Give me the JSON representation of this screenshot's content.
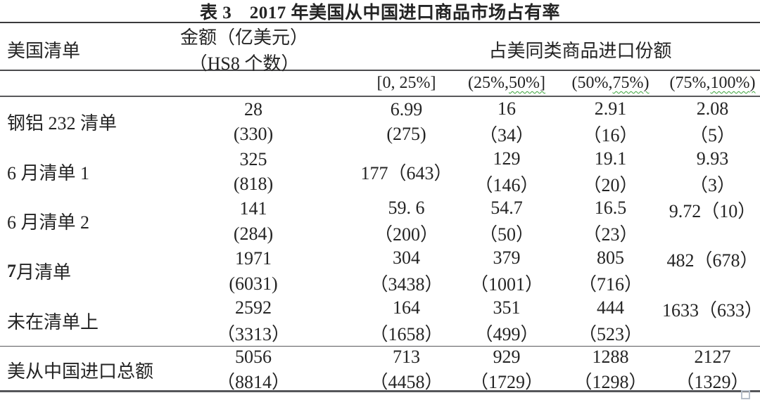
{
  "title": "表 3　2017 年美国从中国进口商品市场占有率",
  "header": {
    "us_list": "美国清单",
    "amount_line1": "金额（亿美元）",
    "amount_line2": "（HS8 个数）",
    "share_title": "占美同类商品进口份额",
    "bins": [
      {
        "pre": "[0, 25%]",
        "wavy": ""
      },
      {
        "pre": "(25%,",
        "wavy": " 50%]"
      },
      {
        "pre": "(50%,",
        "wavy": " 75%)"
      },
      {
        "pre": "(75%,",
        "wavy": " 100%)"
      }
    ]
  },
  "rows": [
    {
      "label_prefix": "",
      "label": "钢铝 232 清单",
      "cells": [
        {
          "l1": "28",
          "l2": "(330)"
        },
        {
          "l1": "6.99",
          "l2": "(275)"
        },
        {
          "l1": "16",
          "l2": "（34）"
        },
        {
          "l1": "2.91",
          "l2": "（16）"
        },
        {
          "l1": "2.08",
          "l2": "（5）"
        }
      ]
    },
    {
      "label_prefix": "",
      "label": "6 月清单 1",
      "cells": [
        {
          "l1": "325",
          "l2": "(818)"
        },
        {
          "l1": "177（643）",
          "l2": ""
        },
        {
          "l1": "129",
          "l2": "（146）"
        },
        {
          "l1": "19.1",
          "l2": "（20）"
        },
        {
          "l1": "9.93",
          "l2": "（3）"
        }
      ]
    },
    {
      "label_prefix": "",
      "label": "6 月清单 2",
      "cells": [
        {
          "l1": "141",
          "l2": "(284)"
        },
        {
          "l1": "59. 6",
          "l2": "（200）"
        },
        {
          "l1": "54.7",
          "l2": "（50）"
        },
        {
          "l1": "16.5",
          "l2": "（23）"
        },
        {
          "l1": "9.72（10）",
          "l2": ""
        }
      ]
    },
    {
      "label_prefix": "7",
      "label": " 月清单",
      "cells": [
        {
          "l1": "1971",
          "l2": "(6031)"
        },
        {
          "l1": "304",
          "l2": "（3438）"
        },
        {
          "l1": "379",
          "l2": "（1001）"
        },
        {
          "l1": "805",
          "l2": "（716）"
        },
        {
          "l1": "482（678）",
          "l2": ""
        }
      ]
    },
    {
      "label_prefix": "",
      "label": "未在清单上",
      "cells": [
        {
          "l1": "2592",
          "l2": "（3313）"
        },
        {
          "l1": "164",
          "l2": "（1658）"
        },
        {
          "l1": "351",
          "l2": "（499）"
        },
        {
          "l1": "444",
          "l2": "（523）"
        },
        {
          "l1": "1633（633）",
          "l2": ""
        }
      ]
    }
  ],
  "total": {
    "label": "美从中国进口总额",
    "cells": [
      {
        "l1": "5056",
        "l2": "（8814）"
      },
      {
        "l1": "713",
        "l2": "（4458）"
      },
      {
        "l1": "929",
        "l2": "（1729）"
      },
      {
        "l1": "1288",
        "l2": "（1298）"
      },
      {
        "l1": "2127",
        "l2": "（1329）"
      }
    ]
  },
  "colors": {
    "text": "#242424",
    "rule": "#4b4b4d",
    "wavy_underline": "#3aa33a"
  },
  "chart_data": {
    "type": "table",
    "title": "表 3　2017 年美国从中国进口商品市场占有率",
    "columns": [
      "美国清单",
      "金额（亿美元）(HS8 个数)",
      "[0, 25%]",
      "(25%, 50%]",
      "(50%, 75%)",
      "(75%, 100%)"
    ],
    "share_group_header": "占美同类商品进口份额",
    "rows": [
      [
        "钢铝 232 清单",
        "28 (330)",
        "6.99 (275)",
        "16（34）",
        "2.91（16）",
        "2.08（5）"
      ],
      [
        "6 月清单 1",
        "325 (818)",
        "177（643）",
        "129（146）",
        "19.1（20）",
        "9.93（3）"
      ],
      [
        "6 月清单 2",
        "141 (284)",
        "59.6（200）",
        "54.7（50）",
        "16.5（23）",
        "9.72（10）"
      ],
      [
        "7 月清单",
        "1971 (6031)",
        "304（3438）",
        "379（1001）",
        "805（716）",
        "482（678）"
      ],
      [
        "未在清单上",
        "2592（3313）",
        "164（1658）",
        "351（499）",
        "444（523）",
        "1633（633）"
      ],
      [
        "美从中国进口总额",
        "5056（8814）",
        "713（4458）",
        "929（1729）",
        "1288（1298）",
        "2127（1329）"
      ]
    ]
  }
}
